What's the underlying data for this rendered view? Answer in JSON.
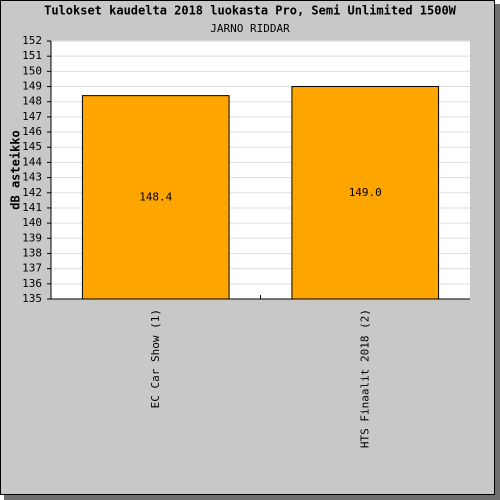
{
  "chart_data": {
    "type": "bar",
    "title": "Tulokset kaudelta 2018 luokasta Pro, Semi Unlimited 1500W",
    "subtitle": "JARNO RIDDAR",
    "y_label": "dB asteikko",
    "categories": [
      "EC Car Show (1)",
      "HTS Finaalit 2018 (2)"
    ],
    "values": [
      148.4,
      149.0
    ],
    "value_labels": [
      "148.4",
      "149.0"
    ],
    "color": "#ffa500",
    "ylim": [
      135,
      152
    ],
    "yticks": [
      135,
      136,
      137,
      138,
      139,
      140,
      141,
      142,
      143,
      144,
      145,
      146,
      147,
      148,
      149,
      150,
      151,
      152
    ],
    "grid": true
  }
}
